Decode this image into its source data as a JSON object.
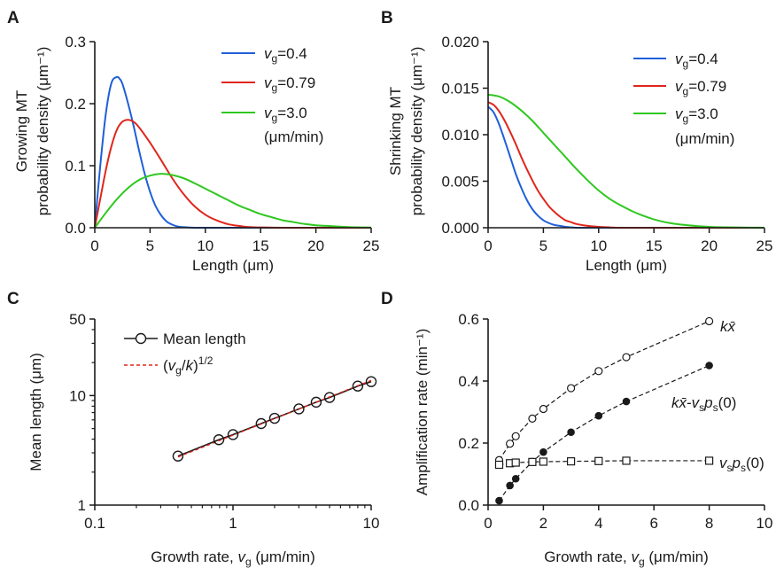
{
  "panels": {
    "A": "A",
    "B": "B",
    "C": "C",
    "D": "D"
  },
  "chart_data": [
    {
      "id": "A",
      "type": "line",
      "ylabel_line1": "Growing MT",
      "ylabel_line2": "probability density (μm⁻¹)",
      "xlabel": "Length (μm)",
      "xlim": [
        0,
        25
      ],
      "ylim": [
        0,
        0.3
      ],
      "xticks": [
        0,
        5,
        10,
        15,
        20,
        25
      ],
      "xtick_labels": [
        "0",
        "5",
        "10",
        "15",
        "20",
        "25"
      ],
      "yticks": [
        0,
        0.1,
        0.2,
        0.3
      ],
      "ytick_labels": [
        "0.0",
        "0.1",
        "0.2",
        "0.3"
      ],
      "legend_position": "top-right",
      "legend_note": "(μm/min)",
      "series": [
        {
          "label_v": "v",
          "label_sub": "g",
          "label_rest": "=0.4",
          "color": "#1f5fd8",
          "x": [
            0,
            0.5,
            1,
            1.5,
            2,
            2.25,
            2.5,
            3,
            3.5,
            4,
            4.5,
            5,
            5.5,
            6,
            6.5,
            7,
            7.5,
            8,
            9,
            10,
            12,
            15,
            20,
            25
          ],
          "y": [
            0,
            0.101,
            0.184,
            0.233,
            0.243,
            0.24,
            0.232,
            0.201,
            0.165,
            0.125,
            0.088,
            0.058,
            0.035,
            0.02,
            0.01,
            0.005,
            0.002,
            0.001,
            0,
            0,
            0,
            0,
            0,
            0
          ]
        },
        {
          "label_v": "v",
          "label_sub": "g",
          "label_rest": "=0.79",
          "color": "#e0261c",
          "x": [
            0,
            0.5,
            1,
            1.5,
            2,
            2.5,
            3,
            3.5,
            4,
            5,
            6,
            7,
            8,
            9,
            10,
            11,
            12,
            13,
            14,
            15,
            17,
            20,
            25
          ],
          "y": [
            0,
            0.047,
            0.093,
            0.131,
            0.158,
            0.171,
            0.174,
            0.171,
            0.162,
            0.137,
            0.109,
            0.08,
            0.055,
            0.035,
            0.021,
            0.012,
            0.006,
            0.003,
            0.001,
            0.0005,
            0,
            0,
            0
          ]
        },
        {
          "label_v": "v",
          "label_sub": "g",
          "label_rest": "=3.0",
          "color": "#2ec81e",
          "x": [
            0,
            1,
            2,
            3,
            4,
            5,
            6,
            7,
            8,
            9,
            10,
            11,
            12,
            13,
            14,
            15,
            16,
            17,
            18,
            19,
            20,
            21,
            22,
            23,
            24,
            25
          ],
          "y": [
            0,
            0.024,
            0.046,
            0.064,
            0.077,
            0.084,
            0.087,
            0.085,
            0.08,
            0.072,
            0.063,
            0.054,
            0.045,
            0.036,
            0.029,
            0.022,
            0.017,
            0.012,
            0.009,
            0.006,
            0.004,
            0.003,
            0.002,
            0.001,
            0.0006,
            0.0004
          ]
        }
      ]
    },
    {
      "id": "B",
      "type": "line",
      "ylabel_line1": "Shrinking MT",
      "ylabel_line2": "probability density (μm⁻¹)",
      "xlabel": "Length (μm)",
      "xlim": [
        0,
        25
      ],
      "ylim": [
        0,
        0.02
      ],
      "xticks": [
        0,
        5,
        10,
        15,
        20,
        25
      ],
      "xtick_labels": [
        "0",
        "5",
        "10",
        "15",
        "20",
        "25"
      ],
      "yticks": [
        0,
        0.005,
        0.01,
        0.015,
        0.02
      ],
      "ytick_labels": [
        "0.000",
        "0.005",
        "0.010",
        "0.015",
        "0.020"
      ],
      "legend_position": "top-right",
      "legend_note": "(μm/min)",
      "series": [
        {
          "label_v": "v",
          "label_sub": "g",
          "label_rest": "=0.4",
          "color": "#1f5fd8",
          "x": [
            0,
            0.5,
            1,
            1.5,
            2,
            2.5,
            3,
            3.5,
            4,
            4.5,
            5,
            5.5,
            6,
            6.5,
            7,
            7.5,
            8,
            9,
            10,
            12,
            15,
            20,
            25
          ],
          "y": [
            0.013,
            0.0124,
            0.0111,
            0.0094,
            0.0076,
            0.0058,
            0.0043,
            0.003,
            0.002,
            0.0013,
            0.0008,
            0.0005,
            0.0003,
            0.0002,
            0.0001,
            5e-05,
            0,
            0,
            0,
            0,
            0,
            0,
            0
          ]
        },
        {
          "label_v": "v",
          "label_sub": "g",
          "label_rest": "=0.79",
          "color": "#e0261c",
          "x": [
            0,
            0.5,
            1,
            1.5,
            2,
            2.5,
            3,
            3.5,
            4,
            4.5,
            5,
            5.5,
            6,
            6.5,
            7,
            7.5,
            8,
            9,
            10,
            11,
            12,
            15,
            20,
            25
          ],
          "y": [
            0.0135,
            0.0132,
            0.0125,
            0.0115,
            0.0103,
            0.009,
            0.0076,
            0.0063,
            0.0051,
            0.004,
            0.0031,
            0.0023,
            0.0017,
            0.0012,
            0.0008,
            0.0006,
            0.0004,
            0.0002,
            0.0001,
            4e-05,
            0,
            0,
            0,
            0
          ]
        },
        {
          "label_v": "v",
          "label_sub": "g",
          "label_rest": "=3.0",
          "color": "#2ec81e",
          "x": [
            0,
            1,
            2,
            3,
            4,
            5,
            6,
            7,
            8,
            9,
            10,
            11,
            12,
            13,
            14,
            15,
            16,
            17,
            18,
            19,
            20,
            21,
            22,
            23,
            24,
            25
          ],
          "y": [
            0.0143,
            0.0141,
            0.0135,
            0.0126,
            0.0115,
            0.0102,
            0.0089,
            0.0076,
            0.0063,
            0.0051,
            0.004,
            0.0031,
            0.0024,
            0.0018,
            0.0013,
            0.0009,
            0.0006,
            0.0004,
            0.00027,
            0.00017,
            0.0001,
            6e-05,
            4e-05,
            2e-05,
            1e-05,
            0
          ]
        }
      ]
    },
    {
      "id": "C",
      "type": "line",
      "xscale": "log",
      "yscale": "log",
      "ylabel": "Mean length (μm)",
      "xlabel_pre": "Growth rate, ",
      "xlabel_v": "v",
      "xlabel_sub": "g",
      "xlabel_post": " (μm/min)",
      "xlim": [
        0.1,
        10
      ],
      "ylim": [
        1,
        50
      ],
      "xticks": [
        0.1,
        1,
        10
      ],
      "xtick_labels": [
        "0.1",
        "1",
        "10"
      ],
      "yticks": [
        1,
        10,
        50
      ],
      "ytick_labels": [
        "1",
        "10",
        "50"
      ],
      "legend_position": "top-left",
      "series": [
        {
          "name": "Mean length",
          "color": "#1a1a1a",
          "marker": "open-circle",
          "x": [
            0.4,
            0.79,
            1,
            1.6,
            2,
            3,
            4,
            5,
            8,
            10
          ],
          "y": [
            2.8,
            3.95,
            4.4,
            5.55,
            6.2,
            7.55,
            8.7,
            9.6,
            12.2,
            13.4
          ]
        },
        {
          "name_pre": "(",
          "name_v": "v",
          "name_sub": "g",
          "name_mid": "/",
          "name_k": "k",
          "name_post": ")",
          "name_sup": "1/2",
          "color": "#e0261c",
          "dashed": true,
          "x": [
            0.4,
            10
          ],
          "y": [
            2.75,
            13.75
          ]
        }
      ]
    },
    {
      "id": "D",
      "type": "line",
      "ylabel": "Amplification rate (min⁻¹)",
      "xlabel_pre": "Growth rate, ",
      "xlabel_v": "v",
      "xlabel_sub": "g",
      "xlabel_post": " (μm/min)",
      "xlim": [
        0,
        10
      ],
      "ylim": [
        0,
        0.6
      ],
      "xticks": [
        0,
        2,
        4,
        6,
        8,
        10
      ],
      "xtick_labels": [
        "0",
        "2",
        "4",
        "6",
        "8",
        "10"
      ],
      "yticks": [
        0,
        0.2,
        0.4,
        0.6
      ],
      "ytick_labels": [
        "0.0",
        "0.2",
        "0.4",
        "0.6"
      ],
      "series": [
        {
          "label": "kx̄",
          "marker": "open-circle",
          "color": "#1a1a1a",
          "x": [
            0.4,
            0.79,
            1,
            1.6,
            2,
            3,
            4,
            5,
            8
          ],
          "y": [
            0.145,
            0.198,
            0.222,
            0.279,
            0.31,
            0.377,
            0.432,
            0.477,
            0.593
          ]
        },
        {
          "label": "kx̄-vsps(0)",
          "marker": "filled-circle",
          "color": "#1a1a1a",
          "x": [
            0.4,
            0.79,
            1,
            1.6,
            2,
            3,
            4,
            5,
            8
          ],
          "y": [
            0.014,
            0.063,
            0.085,
            0.14,
            0.171,
            0.235,
            0.288,
            0.334,
            0.45
          ]
        },
        {
          "label": "vsps(0)",
          "marker": "open-square",
          "color": "#1a1a1a",
          "x": [
            0.4,
            0.79,
            1,
            1.6,
            2,
            3,
            4,
            5,
            8
          ],
          "y": [
            0.13,
            0.135,
            0.137,
            0.139,
            0.14,
            0.141,
            0.142,
            0.143,
            0.143
          ]
        }
      ],
      "annotations": {
        "a1_k": "k",
        "a1_x": "x̄",
        "a2_k": "k",
        "a2_x": "x̄",
        "a2_dash": "-",
        "a2_v": "v",
        "a2_vs": "s",
        "a2_p": "p",
        "a2_ps": "s",
        "a2_tail": "(0)",
        "a3_v": "v",
        "a3_vs": "s",
        "a3_p": "p",
        "a3_ps": "s",
        "a3_tail": "(0)"
      }
    }
  ]
}
